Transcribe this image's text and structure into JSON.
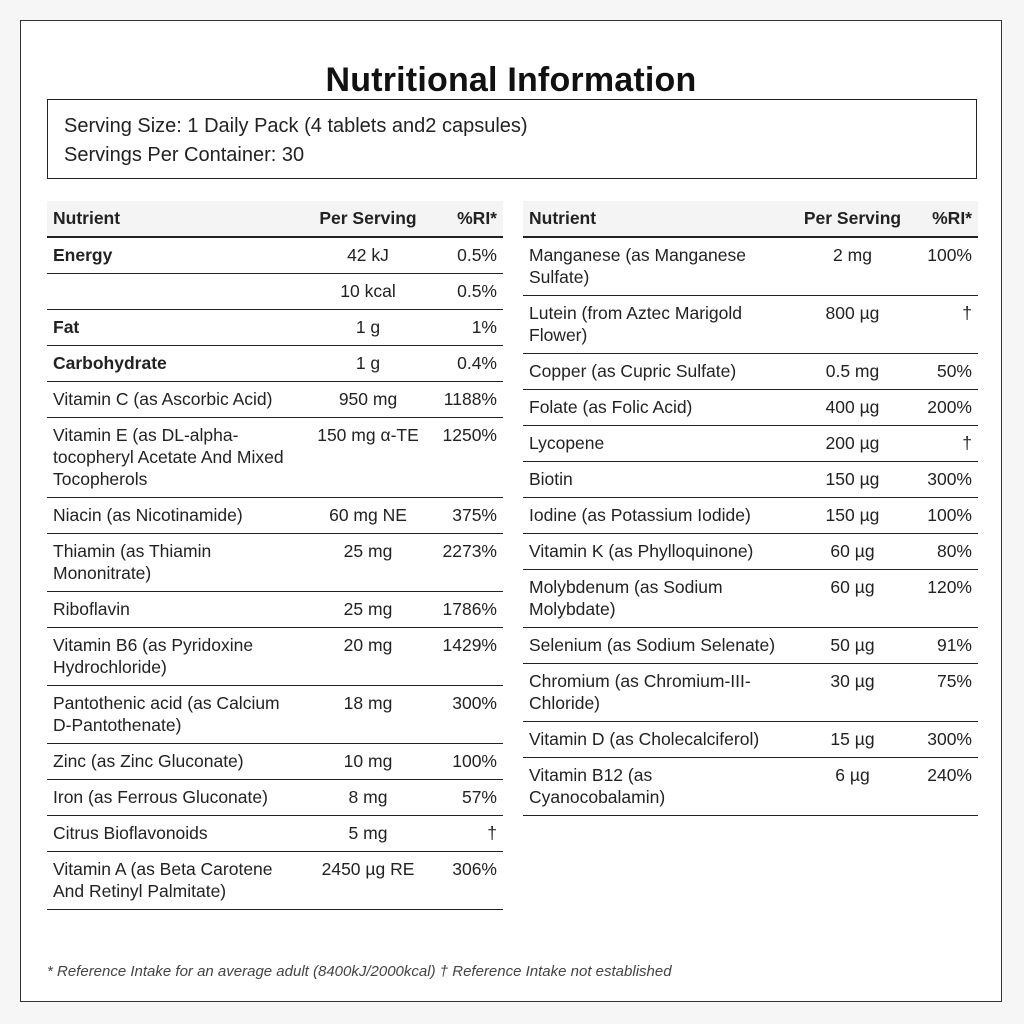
{
  "title": "Nutritional Information",
  "serving": {
    "size": "Serving Size: 1 Daily Pack (4 tablets and2 capsules)",
    "per_container": "Servings Per Container: 30"
  },
  "headers": {
    "nutrient": "Nutrient",
    "per_serving": "Per Serving",
    "ri": "%RI*"
  },
  "left_rows": [
    {
      "nutrient": "Energy",
      "per_serving": "42 kJ",
      "ri": "0.5%",
      "bold": true
    },
    {
      "nutrient": "",
      "per_serving": "10 kcal",
      "ri": "0.5%",
      "bold": false
    },
    {
      "nutrient": "Fat",
      "per_serving": "1 g",
      "ri": "1%",
      "bold": true
    },
    {
      "nutrient": "Carbohydrate",
      "per_serving": "1 g",
      "ri": "0.4%",
      "bold": true
    },
    {
      "nutrient": "Vitamin C (as Ascorbic Acid)",
      "per_serving": "950 mg",
      "ri": "1188%",
      "bold": false
    },
    {
      "nutrient": "Vitamin E (as DL-alpha-tocopheryl Acetate And Mixed Tocopherols",
      "per_serving": "150 mg α-TE",
      "ri": "1250%",
      "bold": false
    },
    {
      "nutrient": "Niacin (as Nicotinamide)",
      "per_serving": "60 mg NE",
      "ri": "375%",
      "bold": false
    },
    {
      "nutrient": "Thiamin (as Thiamin Mononitrate)",
      "per_serving": "25 mg",
      "ri": "2273%",
      "bold": false
    },
    {
      "nutrient": "Riboflavin",
      "per_serving": "25 mg",
      "ri": "1786%",
      "bold": false
    },
    {
      "nutrient": "Vitamin B6 (as Pyridoxine Hydrochloride)",
      "per_serving": "20 mg",
      "ri": "1429%",
      "bold": false
    },
    {
      "nutrient": "Pantothenic acid (as Calcium D-Pantothenate)",
      "per_serving": "18 mg",
      "ri": "300%",
      "bold": false
    },
    {
      "nutrient": "Zinc (as Zinc Gluconate)",
      "per_serving": "10 mg",
      "ri": "100%",
      "bold": false
    },
    {
      "nutrient": "Iron (as Ferrous Gluconate)",
      "per_serving": "8 mg",
      "ri": "57%",
      "bold": false
    },
    {
      "nutrient": "Citrus Bioflavonoids",
      "per_serving": "5 mg",
      "ri": "†",
      "bold": false
    },
    {
      "nutrient": "Vitamin A (as Beta Carotene And Retinyl Palmitate)",
      "per_serving": "2450 µg RE",
      "ri": "306%",
      "bold": false
    }
  ],
  "right_rows": [
    {
      "nutrient": "Manganese (as Manganese Sulfate)",
      "per_serving": "2 mg",
      "ri": "100%"
    },
    {
      "nutrient": "Lutein (from Aztec Marigold Flower)",
      "per_serving": "800 µg",
      "ri": "†"
    },
    {
      "nutrient": "Copper (as Cupric Sulfate)",
      "per_serving": "0.5 mg",
      "ri": "50%"
    },
    {
      "nutrient": "Folate (as Folic Acid)",
      "per_serving": "400 µg",
      "ri": "200%"
    },
    {
      "nutrient": "Lycopene",
      "per_serving": "200 µg",
      "ri": "†"
    },
    {
      "nutrient": "Biotin",
      "per_serving": "150 µg",
      "ri": "300%"
    },
    {
      "nutrient": "Iodine (as Potassium Iodide)",
      "per_serving": "150 µg",
      "ri": "100%"
    },
    {
      "nutrient": "Vitamin K (as Phylloquinone)",
      "per_serving": "60 µg",
      "ri": "80%"
    },
    {
      "nutrient": "Molybdenum (as Sodium Molybdate)",
      "per_serving": "60 µg",
      "ri": "120%"
    },
    {
      "nutrient": "Selenium (as Sodium Selenate)",
      "per_serving": "50 µg",
      "ri": "91%"
    },
    {
      "nutrient": "Chromium (as Chromium-III-Chloride)",
      "per_serving": "30 µg",
      "ri": "75%"
    },
    {
      "nutrient": "Vitamin D (as Cholecalciferol)",
      "per_serving": "15 µg",
      "ri": "300%"
    },
    {
      "nutrient": "Vitamin B12 (as Cyanocobalamin)",
      "per_serving": "6 µg",
      "ri": "240%"
    }
  ],
  "footnote": "* Reference Intake for an average adult (8400kJ/2000kcal) † Reference Intake not established"
}
